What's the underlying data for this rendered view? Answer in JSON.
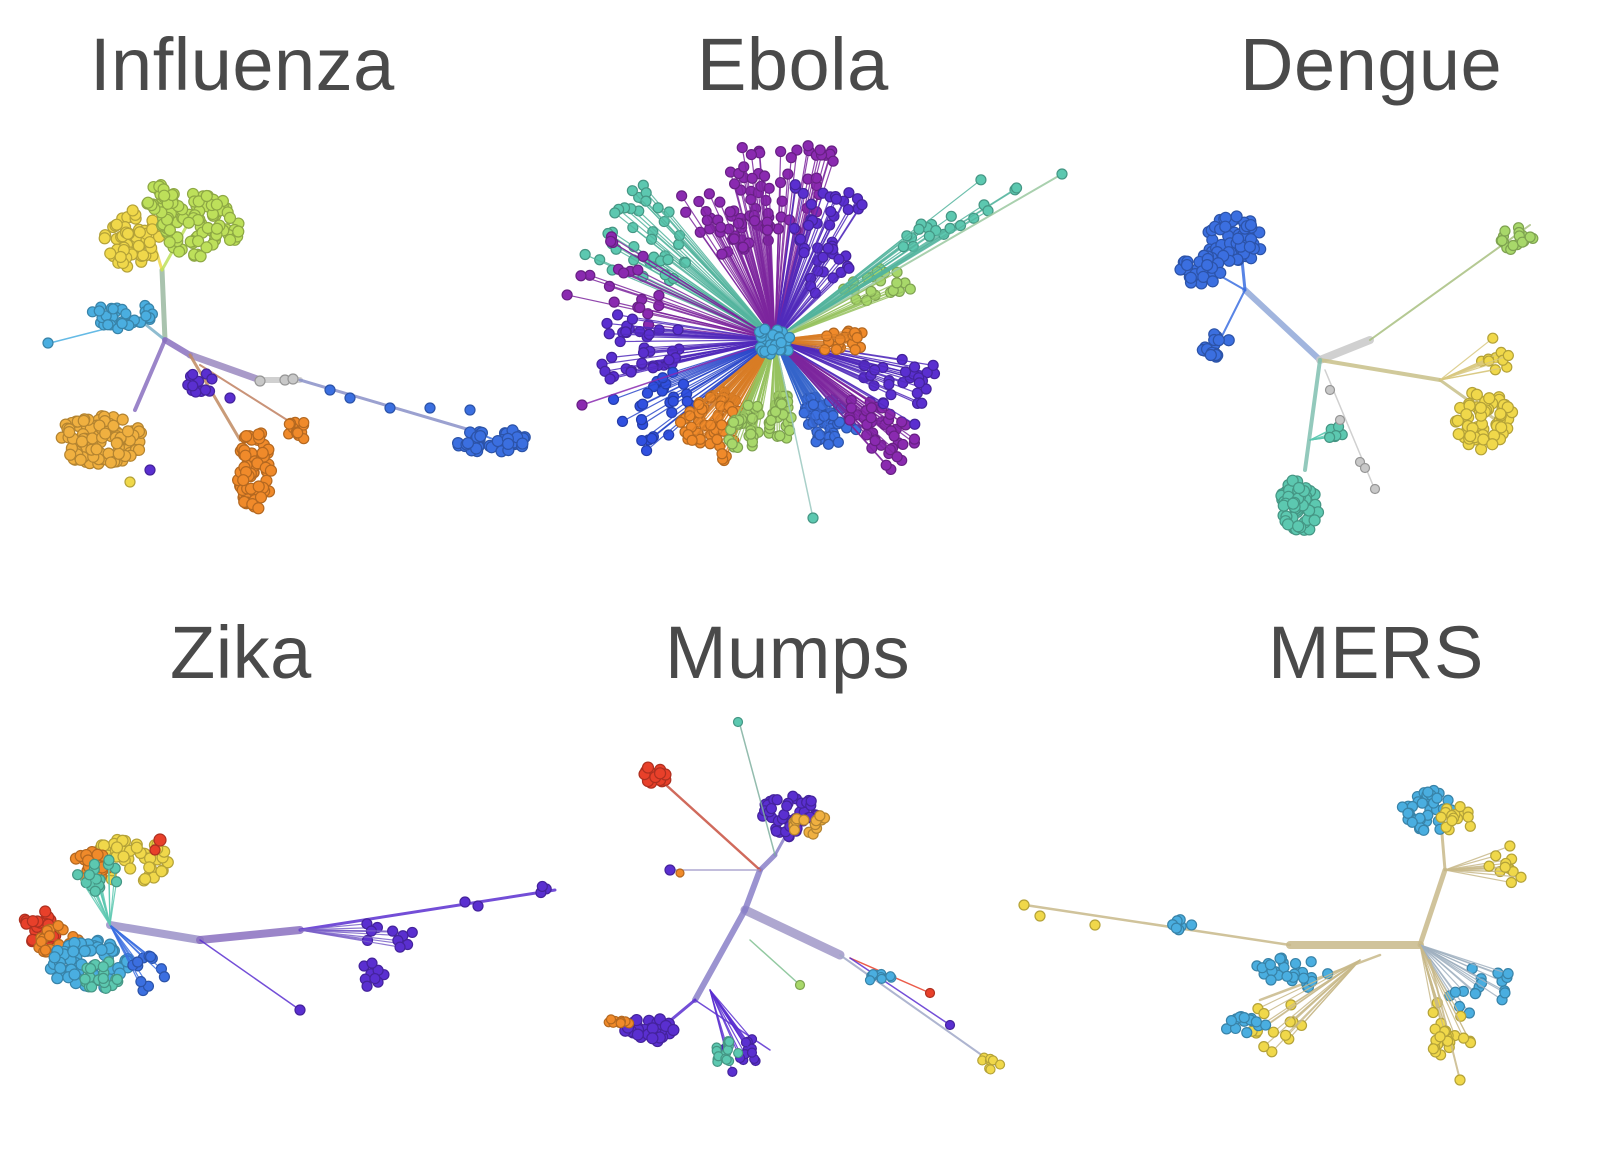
{
  "panels": [
    {
      "title": "Influenza"
    },
    {
      "title": "Ebola"
    },
    {
      "title": "Dengue"
    },
    {
      "title": "Zika"
    },
    {
      "title": "Mumps"
    },
    {
      "title": "MERS"
    }
  ],
  "colors": {
    "title_text": "#4a4a4a",
    "purple": "#5a2fd0",
    "violet": "#8a2ab0",
    "blue": "#3b6fe0",
    "sky": "#4aaee0",
    "teal": "#5cc8b0",
    "green": "#a8d86a",
    "lime": "#bde05a",
    "yellow": "#f0d84a",
    "orange": "#f08a2a",
    "red": "#e8402a",
    "grey": "#c8c8c8",
    "khaki_branch": "#c8b88a"
  }
}
